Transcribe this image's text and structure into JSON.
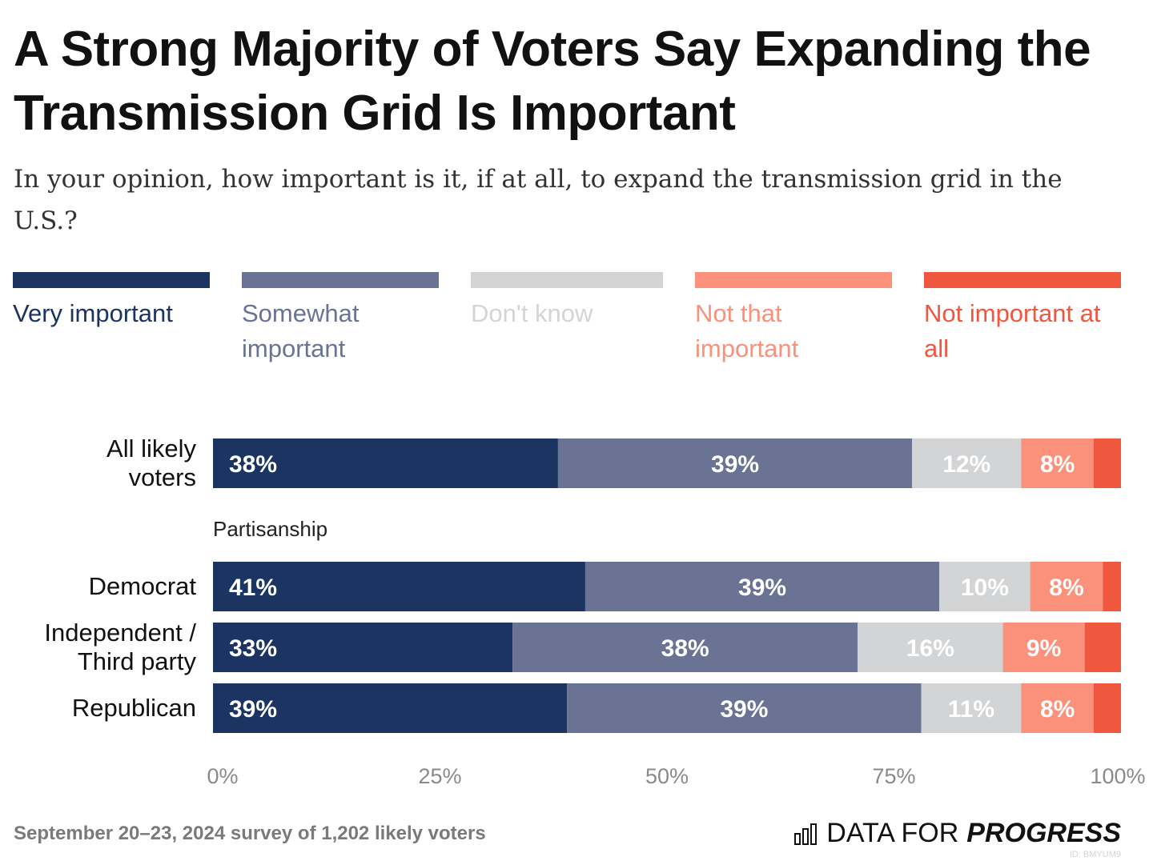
{
  "chart_data": {
    "type": "bar",
    "orientation": "horizontal",
    "stacked": true,
    "title": "A Strong Majority of Voters Say Expanding the Transmission Grid Is Important",
    "subtitle": "In your opinion, how important is it, if at all, to expand the transmission grid in the U.S.?",
    "categories": [
      "All likely voters",
      "Democrat",
      "Independent / Third party",
      "Republican"
    ],
    "category_labels": [
      "All likely\nvoters",
      "Democrat",
      "Independent /\nThird party",
      "Republican"
    ],
    "group_label": "Partisanship",
    "series": [
      {
        "name": "Very important",
        "color": "#1c3461",
        "values": [
          38,
          41,
          33,
          39
        ],
        "labels": [
          "38%",
          "41%",
          "33%",
          "39%"
        ]
      },
      {
        "name": "Somewhat important",
        "color": "#6a7394",
        "values": [
          39,
          39,
          38,
          39
        ],
        "labels": [
          "39%",
          "39%",
          "38%",
          "39%"
        ]
      },
      {
        "name": "Don't know",
        "color": "#d3d4d6",
        "values": [
          12,
          10,
          16,
          11
        ],
        "labels": [
          "12%",
          "10%",
          "16%",
          "11%"
        ]
      },
      {
        "name": "Not that important",
        "color": "#fb917a",
        "values": [
          8,
          8,
          9,
          8
        ],
        "labels": [
          "8%",
          "8%",
          "9%",
          "8%"
        ]
      },
      {
        "name": "Not important at all",
        "color": "#f0573f",
        "values": [
          3,
          2,
          4,
          3
        ],
        "labels": [
          "",
          "",
          "",
          ""
        ]
      }
    ],
    "xlim": [
      0,
      100
    ],
    "xticks": [
      "0%",
      "25%",
      "50%",
      "75%",
      "100%"
    ],
    "grid": false,
    "legend_position": "top"
  },
  "footer": {
    "source": "September 20–23, 2024 survey of 1,202 likely voters",
    "brand_plain": "DATA FOR",
    "brand_bold": "PROGRESS",
    "chart_id": "ID: BMYUM9"
  }
}
